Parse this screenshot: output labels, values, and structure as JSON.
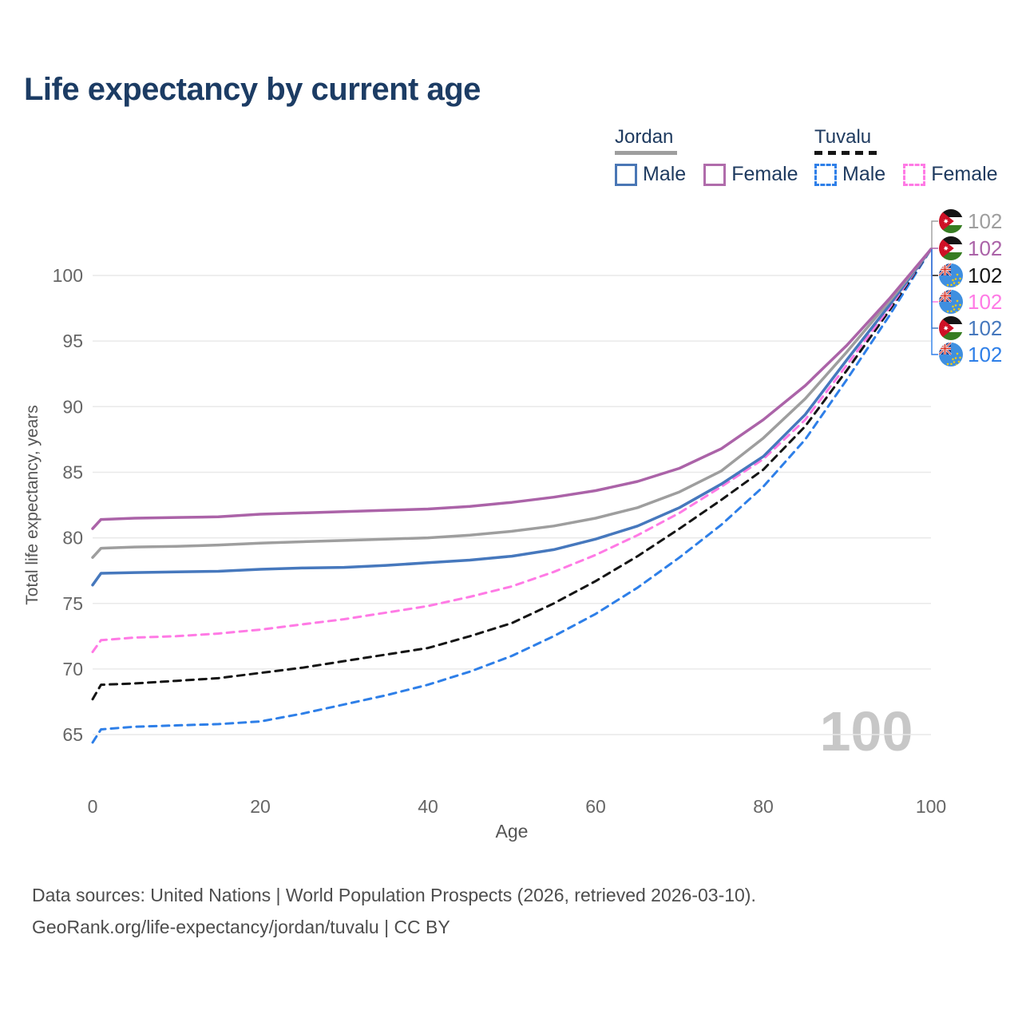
{
  "title": "Life expectancy by current age",
  "legend": {
    "groups": [
      {
        "country": "Jordan",
        "line_style": "solid",
        "underline_color": "#9e9e9e",
        "items": [
          {
            "label": "Male",
            "color": "#4a77b5"
          },
          {
            "label": "Female",
            "color": "#b06cab"
          }
        ]
      },
      {
        "country": "Tuvalu",
        "line_style": "dashed",
        "underline_color": "#151515",
        "items": [
          {
            "label": "Male",
            "color": "#2e7fe8"
          },
          {
            "label": "Female",
            "color": "#ff7ae5"
          }
        ]
      }
    ]
  },
  "watermark": "100",
  "end_labels": [
    {
      "country": "Jordan",
      "series": "Both sexes",
      "flag": "jordan-flag",
      "value": "102",
      "color": "#9e9e9e"
    },
    {
      "country": "Jordan",
      "series": "Female",
      "flag": "jordan-flag",
      "value": "102",
      "color": "#ab63a8"
    },
    {
      "country": "Tuvalu",
      "series": "Both sexes",
      "flag": "tuvalu-flag",
      "value": "102",
      "color": "#151515"
    },
    {
      "country": "Tuvalu",
      "series": "Female",
      "flag": "tuvalu-flag",
      "value": "102",
      "color": "#ff7ae5"
    },
    {
      "country": "Jordan",
      "series": "Male",
      "flag": "jordan-flag",
      "value": "102",
      "color": "#4678bd"
    },
    {
      "country": "Tuvalu",
      "series": "Male",
      "flag": "tuvalu-flag",
      "value": "102",
      "color": "#2e7fe8"
    }
  ],
  "footer": {
    "line1": "Data sources: United Nations | World Population Prospects (2026, retrieved 2026-03-10).",
    "line2": "GeoRank.org/life-expectancy/jordan/tuvalu | CC BY"
  },
  "chart_data": {
    "type": "line",
    "title": "Life expectancy by current age",
    "xlabel": "Age",
    "ylabel": "Total life expectancy, years",
    "x_ticks": [
      0,
      20,
      40,
      60,
      80,
      100
    ],
    "y_ticks": [
      65,
      70,
      75,
      80,
      85,
      90,
      95,
      100
    ],
    "xlim": [
      0,
      100
    ],
    "ylim": [
      63.5,
      104
    ],
    "grid": "horizontal",
    "legend_position": "top-right",
    "x": [
      0,
      1,
      5,
      10,
      15,
      20,
      25,
      30,
      35,
      40,
      45,
      50,
      55,
      60,
      65,
      70,
      75,
      80,
      85,
      90,
      95,
      100
    ],
    "series": [
      {
        "name": "Tuvalu Male",
        "country": "Tuvalu",
        "sex": "male",
        "color": "#2e7fe8",
        "dash": true,
        "values": [
          64.4,
          65.4,
          65.6,
          65.7,
          65.8,
          66.0,
          66.6,
          67.3,
          68.0,
          68.8,
          69.8,
          71.0,
          72.5,
          74.2,
          76.2,
          78.5,
          81.0,
          83.9,
          87.5,
          92.1,
          96.9,
          102
        ]
      },
      {
        "name": "Tuvalu Both sexes",
        "country": "Tuvalu",
        "sex": "both",
        "color": "#151515",
        "dash": true,
        "values": [
          67.7,
          68.8,
          68.9,
          69.1,
          69.3,
          69.7,
          70.1,
          70.6,
          71.1,
          71.6,
          72.5,
          73.5,
          75.0,
          76.7,
          78.6,
          80.7,
          82.9,
          85.2,
          88.5,
          92.8,
          97.3,
          102
        ]
      },
      {
        "name": "Tuvalu Female",
        "country": "Tuvalu",
        "sex": "female",
        "color": "#ff7ae5",
        "dash": true,
        "values": [
          71.3,
          72.2,
          72.4,
          72.5,
          72.7,
          73.0,
          73.4,
          73.8,
          74.3,
          74.8,
          75.5,
          76.3,
          77.4,
          78.7,
          80.2,
          81.9,
          83.9,
          86.0,
          89.0,
          93.2,
          97.5,
          102
        ]
      },
      {
        "name": "Jordan Male",
        "country": "Jordan",
        "sex": "male",
        "color": "#4678bd",
        "dash": false,
        "values": [
          76.4,
          77.3,
          77.35,
          77.4,
          77.45,
          77.6,
          77.7,
          77.75,
          77.9,
          78.1,
          78.3,
          78.6,
          79.1,
          79.9,
          80.9,
          82.3,
          84.1,
          86.2,
          89.4,
          93.6,
          97.7,
          102
        ]
      },
      {
        "name": "Jordan Both sexes",
        "country": "Jordan",
        "sex": "both",
        "color": "#9e9e9e",
        "dash": false,
        "values": [
          78.5,
          79.2,
          79.3,
          79.35,
          79.45,
          79.6,
          79.7,
          79.8,
          79.9,
          80.0,
          80.2,
          80.5,
          80.9,
          81.5,
          82.3,
          83.5,
          85.1,
          87.6,
          90.6,
          94.2,
          98.0,
          102
        ]
      },
      {
        "name": "Jordan Female",
        "country": "Jordan",
        "sex": "female",
        "color": "#ab63a8",
        "dash": false,
        "values": [
          80.7,
          81.4,
          81.5,
          81.55,
          81.6,
          81.8,
          81.9,
          82.0,
          82.1,
          82.2,
          82.4,
          82.7,
          83.1,
          83.6,
          84.3,
          85.3,
          86.8,
          89.0,
          91.6,
          94.7,
          98.2,
          102
        ]
      }
    ]
  }
}
